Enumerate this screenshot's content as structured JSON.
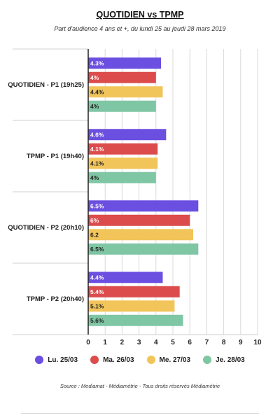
{
  "chart_data": {
    "type": "bar",
    "orientation": "horizontal",
    "title": "QUOTIDIEN vs TPMP",
    "subtitle": "Part d'audience 4 ans et +, du lundi 25 au jeudi 28 mars 2019",
    "categories": [
      "QUOTIDIEN - P1 (19h25)",
      "TPMP - P1 (19h40)",
      "QUOTIDIEN - P2 (20h10)",
      "TPMP - P2 (20h40)"
    ],
    "series": [
      {
        "name": "Lu. 25/03",
        "color": "#6a4fe0",
        "values": [
          4.3,
          4.6,
          6.5,
          4.4
        ],
        "labels": [
          "4.3%",
          "4.6%",
          "6.5%",
          "4.4%"
        ]
      },
      {
        "name": "Ma. 26/03",
        "color": "#dc4c4c",
        "values": [
          4.0,
          4.1,
          6.0,
          5.4
        ],
        "labels": [
          "4%",
          "4.1%",
          "6%",
          "5.4%"
        ]
      },
      {
        "name": "Me. 27/03",
        "color": "#f2c55a",
        "values": [
          4.4,
          4.1,
          6.2,
          5.1
        ],
        "labels": [
          "4.4%",
          "4.1%",
          "6.2",
          "5.1%"
        ]
      },
      {
        "name": "Je. 28/03",
        "color": "#7fc6a4",
        "values": [
          4.0,
          4.0,
          6.5,
          5.6
        ],
        "labels": [
          "4%",
          "4%",
          "6.5%",
          "5.6%"
        ]
      }
    ],
    "xlim": [
      0,
      10
    ],
    "xticks": [
      "0",
      "1",
      "2",
      "3",
      "4",
      "5",
      "6",
      "7",
      "8",
      "9",
      "10"
    ],
    "grid": true,
    "legend_position": "bottom"
  },
  "source": "Source : Mediamat - Médiamétrie - Tous droits réservés Médiamétrie"
}
